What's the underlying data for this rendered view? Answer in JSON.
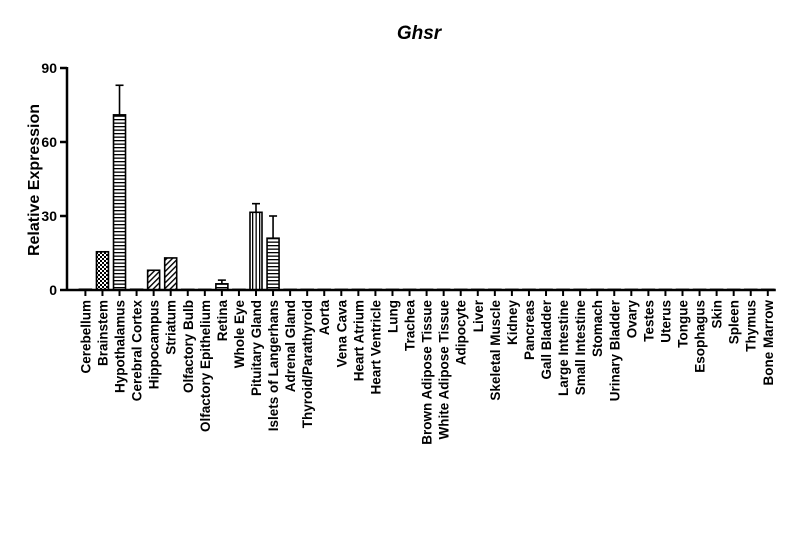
{
  "chart_data": {
    "type": "bar",
    "title": "Ghsr",
    "xlabel": "",
    "ylabel": "Relative Expression",
    "ylim": [
      0,
      90
    ],
    "yticks": [
      0,
      30,
      60,
      90
    ],
    "grid": false,
    "categories": [
      "Cerebellum",
      "Brainstem",
      "Hypothalamus",
      "Cerebral Cortex",
      "Hippocampus",
      "Striatum",
      "Olfactory Bulb",
      "Olfactory Epithelium",
      "Retina",
      "Whole Eye",
      "Pituitary Gland",
      "Islets of Langerhans",
      "Adrenal Gland",
      "Thyroid/Parathyroid",
      "Aorta",
      "Vena Cava",
      "Heart Atrium",
      "Heart Ventricle",
      "Lung",
      "Trachea",
      "Brown Adipose Tissue",
      "White Adipose Tissue",
      "Adipocyte",
      "Liver",
      "Skeletal Muscle",
      "Kidney",
      "Pancreas",
      "Gall Bladder",
      "Large Intestine",
      "Small Intestine",
      "Stomach",
      "Urinary Bladder",
      "Ovary",
      "Testes",
      "Uterus",
      "Tongue",
      "Esophagus",
      "Skin",
      "Spleen",
      "Thymus",
      "Bone Marrow"
    ],
    "values": [
      0.3,
      15.5,
      71,
      0.3,
      8,
      13,
      0.2,
      0.2,
      2.5,
      0.2,
      31.5,
      21,
      0.2,
      0.1,
      0.1,
      0.1,
      0.1,
      0.1,
      0.1,
      0.1,
      0.1,
      0.1,
      0.1,
      0.1,
      0.1,
      0.1,
      0.1,
      0.1,
      0.1,
      0.1,
      0.1,
      0.1,
      0.1,
      0.1,
      0.1,
      0.1,
      0.1,
      0.1,
      0.1,
      0.1,
      0.1
    ],
    "errors": [
      0,
      0,
      12,
      0,
      0,
      0,
      0,
      0,
      1.5,
      0,
      3.5,
      9,
      0,
      0,
      0,
      0,
      0,
      0,
      0,
      0,
      0,
      0,
      0,
      0,
      0,
      0,
      0,
      0,
      0,
      0,
      0,
      0,
      0,
      0,
      0,
      0,
      0,
      0,
      0,
      0,
      0
    ],
    "patterns": [
      "none",
      "checker",
      "hlines",
      "none",
      "diag",
      "diag",
      "none",
      "none",
      "hlines",
      "none",
      "vlines",
      "hlines",
      "none",
      "none",
      "none",
      "none",
      "none",
      "none",
      "none",
      "none",
      "none",
      "none",
      "none",
      "none",
      "none",
      "none",
      "none",
      "none",
      "none",
      "none",
      "none",
      "none",
      "none",
      "none",
      "none",
      "none",
      "none",
      "none",
      "none",
      "none",
      "none"
    ],
    "bar_color": "#000000"
  }
}
